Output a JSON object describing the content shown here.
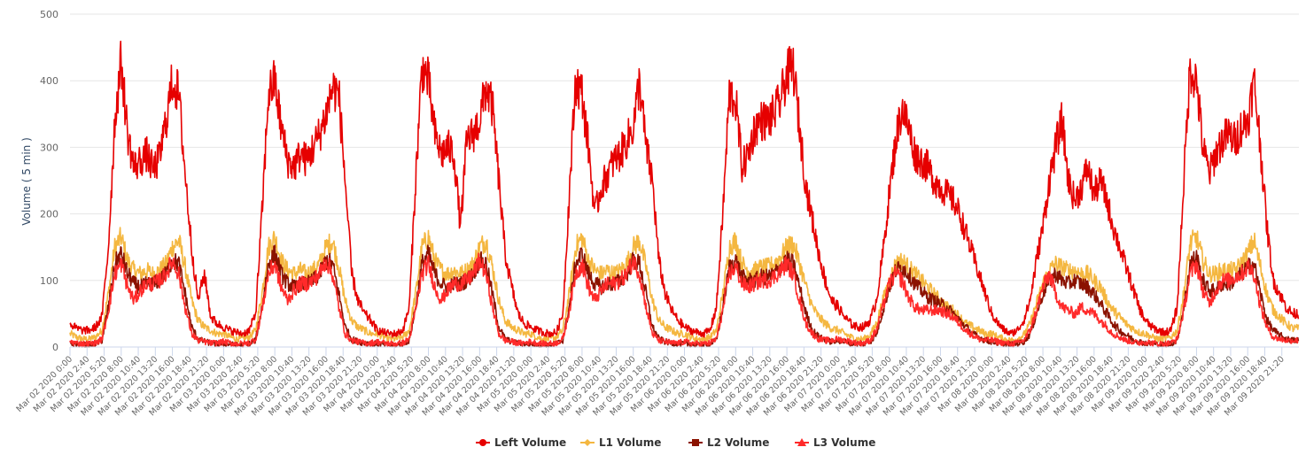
{
  "chart_data": {
    "type": "line",
    "title": "",
    "xlabel": "",
    "ylabel": "Volume ( 5 min )",
    "ylim": [
      0,
      500
    ],
    "y_ticks": [
      "0",
      "100",
      "200",
      "300",
      "400",
      "500"
    ],
    "grid": true,
    "legend_position": "bottom-center",
    "resolution_note": "hourly values (hours 0-23) per day",
    "x_ticks": [
      "Mar 02 2020 0:00",
      "Mar 02 2020 2:40",
      "Mar 02 2020 5:20",
      "Mar 02 2020 8:00",
      "Mar 02 2020 10:40",
      "Mar 02 2020 13:20",
      "Mar 02 2020 16:00",
      "Mar 02 2020 18:40",
      "Mar 02 2020 21:20",
      "Mar 03 2020 0:00",
      "Mar 03 2020 2:40",
      "Mar 03 2020 5:20",
      "Mar 03 2020 8:00",
      "Mar 03 2020 10:40",
      "Mar 03 2020 13:20",
      "Mar 03 2020 16:00",
      "Mar 03 2020 18:40",
      "Mar 03 2020 21:20",
      "Mar 04 2020 0:00",
      "Mar 04 2020 2:40",
      "Mar 04 2020 5:20",
      "Mar 04 2020 8:00",
      "Mar 04 2020 10:40",
      "Mar 04 2020 13:20",
      "Mar 04 2020 16:00",
      "Mar 04 2020 18:40",
      "Mar 04 2020 21:20",
      "Mar 05 2020 0:00",
      "Mar 05 2020 2:40",
      "Mar 05 2020 5:20",
      "Mar 05 2020 8:00",
      "Mar 05 2020 10:40",
      "Mar 05 2020 13:20",
      "Mar 05 2020 16:00",
      "Mar 05 2020 18:40",
      "Mar 05 2020 21:20",
      "Mar 06 2020 0:00",
      "Mar 06 2020 2:40",
      "Mar 06 2020 5:20",
      "Mar 06 2020 8:00",
      "Mar 06 2020 10:40",
      "Mar 06 2020 13:20",
      "Mar 06 2020 16:00",
      "Mar 06 2020 18:40",
      "Mar 06 2020 21:20",
      "Mar 07 2020 0:00",
      "Mar 07 2020 2:40",
      "Mar 07 2020 5:20",
      "Mar 07 2020 8:00",
      "Mar 07 2020 10:40",
      "Mar 07 2020 13:20",
      "Mar 07 2020 16:00",
      "Mar 07 2020 18:40",
      "Mar 07 2020 21:20",
      "Mar 08 2020 0:00",
      "Mar 08 2020 2:40",
      "Mar 08 2020 5:20",
      "Mar 08 2020 8:00",
      "Mar 08 2020 10:40",
      "Mar 08 2020 13:20",
      "Mar 08 2020 16:00",
      "Mar 08 2020 18:40",
      "Mar 08 2020 21:20",
      "Mar 09 2020 0:00",
      "Mar 09 2020 2:40",
      "Mar 09 2020 5:20",
      "Mar 09 2020 8:00",
      "Mar 09 2020 10:40",
      "Mar 09 2020 13:20",
      "Mar 09 2020 16:00",
      "Mar 09 2020 18:40",
      "Mar 09 2020 21:20"
    ],
    "series": [
      {
        "key": "l1",
        "name": "L1 Volume",
        "color": "#f4b740",
        "marker": "diamond"
      },
      {
        "key": "l2",
        "name": "L2 Volume",
        "color": "#8b1200",
        "marker": "square"
      },
      {
        "key": "l3",
        "name": "L3 Volume",
        "color": "#ff2a2a",
        "marker": "triangle"
      },
      {
        "key": "left",
        "name": "Left Volume",
        "color": "#e60000",
        "marker": "circle"
      }
    ],
    "legend_order": [
      "left",
      "l1",
      "l2",
      "l3"
    ],
    "days": [
      {
        "date": "Mar 02 2020",
        "left": [
          35,
          28,
          25,
          25,
          30,
          45,
          150,
          340,
          430,
          320,
          270,
          280,
          290,
          265,
          285,
          340,
          400,
          380,
          260,
          150,
          70,
          110,
          45,
          35
        ],
        "l1": [
          20,
          15,
          12,
          12,
          15,
          25,
          80,
          150,
          165,
          130,
          115,
          110,
          115,
          110,
          115,
          125,
          150,
          160,
          120,
          70,
          40,
          30,
          25,
          20
        ],
        "l2": [
          5,
          4,
          3,
          3,
          5,
          10,
          60,
          125,
          140,
          110,
          95,
          90,
          95,
          95,
          100,
          110,
          130,
          125,
          80,
          30,
          12,
          8,
          6,
          5
        ],
        "l3": [
          8,
          6,
          5,
          5,
          6,
          12,
          55,
          110,
          125,
          90,
          70,
          85,
          95,
          95,
          100,
          110,
          130,
          110,
          60,
          20,
          10,
          8,
          6,
          6
        ]
      },
      {
        "date": "Mar 03 2020",
        "left": [
          30,
          25,
          22,
          20,
          25,
          50,
          200,
          380,
          400,
          330,
          280,
          270,
          290,
          280,
          300,
          320,
          350,
          390,
          380,
          250,
          110,
          70,
          50,
          40
        ],
        "l1": [
          20,
          15,
          12,
          12,
          15,
          25,
          80,
          150,
          165,
          130,
          115,
          110,
          115,
          110,
          115,
          125,
          150,
          160,
          120,
          70,
          40,
          30,
          25,
          20
        ],
        "l2": [
          5,
          4,
          3,
          3,
          5,
          10,
          60,
          125,
          140,
          110,
          95,
          90,
          95,
          95,
          100,
          110,
          130,
          125,
          80,
          30,
          12,
          8,
          6,
          5
        ],
        "l3": [
          8,
          6,
          5,
          5,
          6,
          12,
          55,
          110,
          125,
          90,
          70,
          85,
          95,
          95,
          100,
          110,
          130,
          110,
          60,
          20,
          10,
          8,
          6,
          6
        ]
      },
      {
        "date": "Mar 04 2020",
        "left": [
          25,
          22,
          20,
          20,
          25,
          60,
          250,
          420,
          400,
          320,
          290,
          300,
          290,
          180,
          310,
          320,
          340,
          390,
          360,
          250,
          140,
          90,
          50,
          35
        ],
        "l1": [
          20,
          15,
          12,
          12,
          15,
          25,
          80,
          150,
          165,
          130,
          115,
          110,
          115,
          110,
          115,
          125,
          150,
          160,
          120,
          70,
          40,
          30,
          25,
          20
        ],
        "l2": [
          5,
          4,
          3,
          3,
          5,
          10,
          60,
          125,
          140,
          110,
          95,
          90,
          95,
          95,
          100,
          110,
          130,
          125,
          80,
          30,
          12,
          8,
          6,
          5
        ],
        "l3": [
          8,
          6,
          5,
          5,
          6,
          12,
          55,
          110,
          125,
          90,
          70,
          85,
          95,
          95,
          100,
          110,
          130,
          110,
          60,
          20,
          10,
          8,
          6,
          6
        ]
      },
      {
        "date": "Mar 05 2020",
        "left": [
          30,
          25,
          22,
          20,
          22,
          50,
          230,
          400,
          380,
          300,
          200,
          240,
          260,
          280,
          290,
          310,
          330,
          400,
          300,
          250,
          130,
          80,
          55,
          40
        ],
        "l1": [
          20,
          15,
          12,
          12,
          15,
          25,
          80,
          150,
          165,
          130,
          115,
          110,
          115,
          110,
          115,
          125,
          150,
          160,
          120,
          70,
          40,
          30,
          25,
          20
        ],
        "l2": [
          5,
          4,
          3,
          3,
          5,
          10,
          60,
          125,
          140,
          110,
          95,
          90,
          95,
          95,
          100,
          110,
          130,
          125,
          80,
          30,
          12,
          8,
          6,
          5
        ],
        "l3": [
          8,
          6,
          5,
          5,
          6,
          12,
          55,
          110,
          125,
          90,
          70,
          85,
          95,
          95,
          100,
          110,
          130,
          110,
          60,
          20,
          10,
          8,
          6,
          6
        ]
      },
      {
        "date": "Mar 06 2020",
        "left": [
          30,
          25,
          22,
          20,
          25,
          60,
          200,
          380,
          370,
          270,
          290,
          330,
          340,
          340,
          350,
          370,
          410,
          420,
          330,
          240,
          190,
          140,
          100,
          70
        ],
        "l1": [
          20,
          15,
          12,
          12,
          15,
          25,
          80,
          150,
          160,
          125,
          115,
          115,
          120,
          120,
          125,
          135,
          150,
          155,
          125,
          90,
          60,
          45,
          35,
          28
        ],
        "l2": [
          5,
          4,
          3,
          3,
          5,
          10,
          60,
          120,
          130,
          105,
          100,
          100,
          105,
          105,
          110,
          120,
          130,
          125,
          90,
          50,
          25,
          15,
          10,
          8
        ],
        "l3": [
          8,
          6,
          5,
          5,
          6,
          12,
          55,
          110,
          120,
          95,
          90,
          95,
          100,
          100,
          105,
          115,
          125,
          110,
          70,
          35,
          20,
          12,
          10,
          10
        ]
      },
      {
        "date": "Mar 07 2020",
        "left": [
          60,
          45,
          35,
          30,
          30,
          40,
          70,
          140,
          230,
          310,
          360,
          330,
          290,
          280,
          270,
          250,
          240,
          230,
          220,
          200,
          170,
          140,
          110,
          80
        ],
        "l1": [
          25,
          20,
          15,
          12,
          12,
          18,
          35,
          70,
          100,
          125,
          130,
          120,
          110,
          100,
          90,
          80,
          70,
          60,
          55,
          45,
          35,
          30,
          25,
          20
        ],
        "l2": [
          10,
          8,
          6,
          5,
          5,
          8,
          20,
          55,
          90,
          115,
          120,
          110,
          95,
          85,
          75,
          70,
          65,
          60,
          50,
          40,
          30,
          20,
          15,
          10
        ],
        "l3": [
          12,
          10,
          8,
          6,
          6,
          10,
          25,
          60,
          95,
          110,
          100,
          75,
          60,
          55,
          55,
          55,
          55,
          50,
          45,
          35,
          25,
          18,
          12,
          10
        ]
      },
      {
        "date": "Mar 08 2020",
        "left": [
          50,
          35,
          25,
          20,
          25,
          40,
          70,
          130,
          180,
          250,
          300,
          340,
          250,
          220,
          240,
          270,
          230,
          250,
          220,
          180,
          150,
          120,
          90,
          60
        ],
        "l1": [
          20,
          15,
          12,
          10,
          12,
          18,
          35,
          65,
          95,
          115,
          125,
          120,
          115,
          115,
          110,
          110,
          100,
          90,
          70,
          55,
          45,
          35,
          28,
          22
        ],
        "l2": [
          8,
          6,
          5,
          4,
          5,
          8,
          20,
          50,
          80,
          100,
          110,
          100,
          95,
          100,
          95,
          90,
          80,
          65,
          50,
          35,
          25,
          18,
          12,
          8
        ],
        "l3": [
          10,
          8,
          6,
          5,
          6,
          10,
          25,
          55,
          90,
          110,
          80,
          60,
          55,
          50,
          60,
          55,
          50,
          40,
          30,
          20,
          15,
          10,
          8,
          6
        ]
      },
      {
        "date": "Mar 09 2020",
        "left": [
          40,
          30,
          25,
          22,
          25,
          60,
          250,
          420,
          400,
          300,
          260,
          290,
          310,
          320,
          310,
          330,
          340,
          400,
          300,
          180,
          100,
          80,
          60,
          50
        ],
        "l1": [
          20,
          15,
          12,
          12,
          15,
          25,
          80,
          155,
          165,
          130,
          110,
          110,
          115,
          115,
          115,
          125,
          140,
          160,
          120,
          80,
          55,
          45,
          35,
          28
        ],
        "l2": [
          6,
          5,
          4,
          3,
          5,
          10,
          60,
          125,
          135,
          100,
          85,
          85,
          95,
          95,
          100,
          110,
          120,
          125,
          80,
          40,
          25,
          18,
          12,
          10
        ],
        "l3": [
          8,
          6,
          5,
          5,
          6,
          12,
          55,
          110,
          125,
          85,
          65,
          85,
          100,
          100,
          105,
          110,
          120,
          110,
          60,
          30,
          15,
          12,
          10,
          10
        ]
      }
    ]
  }
}
